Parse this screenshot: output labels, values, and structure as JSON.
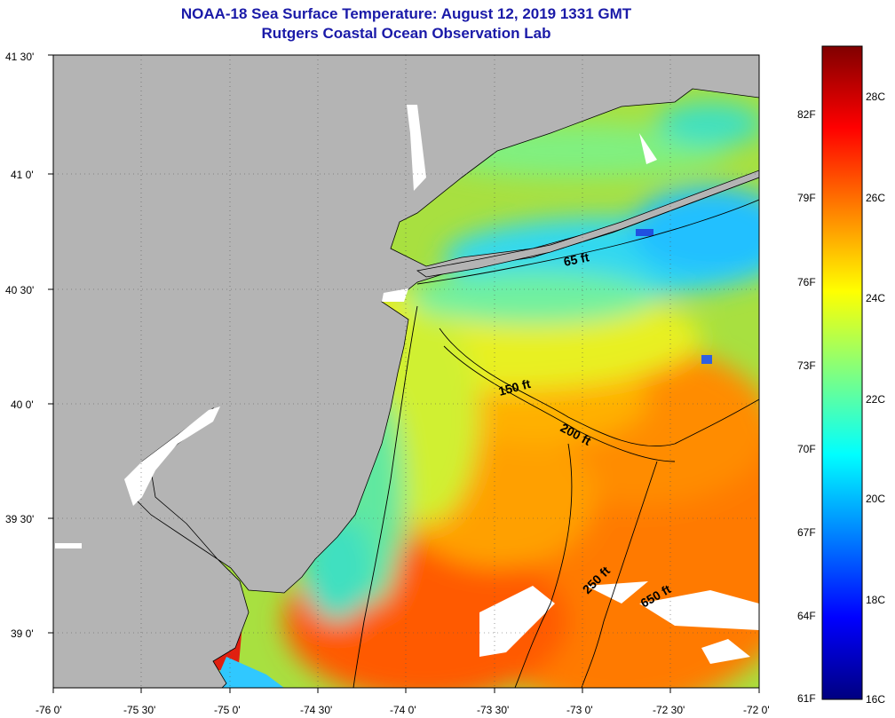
{
  "header": {
    "title": "NOAA-18 Sea Surface Temperature:  August 12, 2019 1331 GMT",
    "subtitle": "Rutgers Coastal Ocean Observation Lab"
  },
  "axes": {
    "lon_labels": [
      "-76 0'",
      "-75 30'",
      "-75 0'",
      "-74 30'",
      "-74 0'",
      "-73 30'",
      "-73 0'",
      "-72 30'",
      "-72 0'"
    ],
    "lat_labels": [
      "41 30'",
      "41 0'",
      "40 30'",
      "40 0'",
      "39 30'",
      "39 0'"
    ]
  },
  "map": {
    "lon_range": [
      -76.0,
      -72.0
    ],
    "lat_range": [
      38.75,
      41.5
    ],
    "grid": "dotted",
    "contour_labels": [
      "65 ft",
      "150 ft",
      "200 ft",
      "250 ft",
      "650 ft"
    ],
    "land_color": "#b4b4b4",
    "cloud_color": "#ffffff"
  },
  "colorbar": {
    "fahrenheit_labels": [
      "82F",
      "79F",
      "76F",
      "73F",
      "70F",
      "67F",
      "64F",
      "61F"
    ],
    "celsius_labels": [
      "28C",
      "26C",
      "24C",
      "22C",
      "20C",
      "18C",
      "16C"
    ],
    "range_c": [
      16,
      29.5
    ],
    "stops": [
      "#000080",
      "#0000ff",
      "#0080ff",
      "#00ffff",
      "#80ff80",
      "#ffff00",
      "#ff8000",
      "#ff0000",
      "#800000"
    ]
  }
}
